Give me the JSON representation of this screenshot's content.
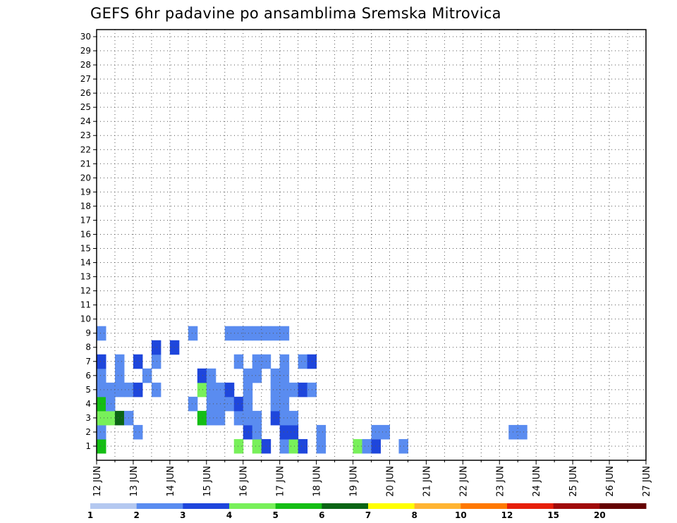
{
  "chart_data": {
    "type": "heatmap",
    "title": "GEFS 6hr padavine po ansamblima Sremska Mitrovica",
    "xlabel": "",
    "ylabel": "",
    "y_ticks": [
      "1",
      "2",
      "3",
      "4",
      "5",
      "6",
      "7",
      "8",
      "9",
      "10",
      "11",
      "12",
      "13",
      "14",
      "15",
      "16",
      "17",
      "18",
      "19",
      "20",
      "21",
      "22",
      "23",
      "24",
      "25",
      "26",
      "27",
      "28",
      "29",
      "30"
    ],
    "x_ticks": [
      "12 JUN",
      "13 JUN",
      "14 JUN",
      "15 JUN",
      "16 JUN",
      "17 JUN",
      "18 JUN",
      "19 JUN",
      "20 JUN",
      "21 JUN",
      "22 JUN",
      "23 JUN",
      "24 JUN",
      "25 JUN",
      "26 JUN",
      "27 JUN"
    ],
    "x_range": [
      "12 JUN 00z",
      "27 JUN 00z"
    ],
    "time_step_hours": 6,
    "ensemble_members": 30,
    "grid": "dotted",
    "legend": {
      "placement": "bottom",
      "labels": [
        "1",
        "2",
        "3",
        "4",
        "5",
        "6",
        "7",
        "8",
        "10",
        "12",
        "15",
        "20"
      ],
      "colors": [
        "#b4c8f0",
        "#5a8cf0",
        "#1e46dc",
        "#78f05a",
        "#14be14",
        "#0a6414",
        "#ffff00",
        "#ffb432",
        "#ff7800",
        "#e61e0a",
        "#a00a0a",
        "#640000"
      ]
    },
    "cells": [
      [
        1,
        0,
        4
      ],
      [
        1,
        15,
        3
      ],
      [
        1,
        17,
        3
      ],
      [
        1,
        18,
        2
      ],
      [
        1,
        20,
        1
      ],
      [
        1,
        21,
        3
      ],
      [
        1,
        22,
        2
      ],
      [
        1,
        24,
        1
      ],
      [
        1,
        28,
        3
      ],
      [
        1,
        29,
        1
      ],
      [
        1,
        30,
        2
      ],
      [
        1,
        33,
        1
      ],
      [
        2,
        0,
        1
      ],
      [
        2,
        4,
        1
      ],
      [
        2,
        16,
        2
      ],
      [
        2,
        17,
        1
      ],
      [
        2,
        20,
        2
      ],
      [
        2,
        21,
        2
      ],
      [
        2,
        24,
        1
      ],
      [
        2,
        30,
        1
      ],
      [
        2,
        31,
        1
      ],
      [
        2,
        45,
        1
      ],
      [
        2,
        46,
        1
      ],
      [
        3,
        0,
        3
      ],
      [
        3,
        1,
        3
      ],
      [
        3,
        2,
        5
      ],
      [
        3,
        3,
        1
      ],
      [
        3,
        11,
        4
      ],
      [
        3,
        12,
        1
      ],
      [
        3,
        13,
        1
      ],
      [
        3,
        15,
        1
      ],
      [
        3,
        16,
        1
      ],
      [
        3,
        17,
        1
      ],
      [
        3,
        19,
        2
      ],
      [
        3,
        20,
        1
      ],
      [
        3,
        21,
        1
      ],
      [
        4,
        0,
        4
      ],
      [
        4,
        1,
        1
      ],
      [
        4,
        10,
        1
      ],
      [
        4,
        12,
        1
      ],
      [
        4,
        13,
        1
      ],
      [
        4,
        14,
        1
      ],
      [
        4,
        15,
        2
      ],
      [
        4,
        16,
        1
      ],
      [
        4,
        19,
        1
      ],
      [
        4,
        20,
        1
      ],
      [
        5,
        0,
        1
      ],
      [
        5,
        1,
        1
      ],
      [
        5,
        2,
        1
      ],
      [
        5,
        3,
        1
      ],
      [
        5,
        4,
        2
      ],
      [
        5,
        6,
        1
      ],
      [
        5,
        11,
        3
      ],
      [
        5,
        12,
        1
      ],
      [
        5,
        13,
        1
      ],
      [
        5,
        14,
        2
      ],
      [
        5,
        16,
        1
      ],
      [
        5,
        19,
        1
      ],
      [
        5,
        20,
        1
      ],
      [
        5,
        21,
        1
      ],
      [
        5,
        22,
        2
      ],
      [
        5,
        23,
        1
      ],
      [
        6,
        0,
        1
      ],
      [
        6,
        2,
        1
      ],
      [
        6,
        5,
        1
      ],
      [
        6,
        11,
        2
      ],
      [
        6,
        12,
        1
      ],
      [
        6,
        16,
        1
      ],
      [
        6,
        17,
        1
      ],
      [
        6,
        19,
        1
      ],
      [
        6,
        20,
        1
      ],
      [
        7,
        0,
        2
      ],
      [
        7,
        2,
        1
      ],
      [
        7,
        4,
        2
      ],
      [
        7,
        6,
        1
      ],
      [
        7,
        15,
        1
      ],
      [
        7,
        17,
        1
      ],
      [
        7,
        18,
        1
      ],
      [
        7,
        20,
        1
      ],
      [
        7,
        22,
        1
      ],
      [
        7,
        23,
        2
      ],
      [
        8,
        6,
        2
      ],
      [
        8,
        8,
        2
      ],
      [
        9,
        0,
        1
      ],
      [
        9,
        10,
        1
      ],
      [
        9,
        14,
        1
      ],
      [
        9,
        15,
        1
      ],
      [
        9,
        16,
        1
      ],
      [
        9,
        17,
        1
      ],
      [
        9,
        18,
        1
      ],
      [
        9,
        19,
        1
      ],
      [
        9,
        20,
        1
      ]
    ]
  }
}
